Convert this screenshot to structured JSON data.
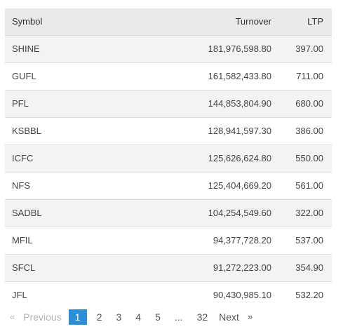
{
  "table": {
    "headers": {
      "symbol": "Symbol",
      "turnover": "Turnover",
      "ltp": "LTP"
    },
    "rows": [
      {
        "symbol": "SHINE",
        "turnover": "181,976,598.80",
        "ltp": "397.00"
      },
      {
        "symbol": "GUFL",
        "turnover": "161,582,433.80",
        "ltp": "711.00"
      },
      {
        "symbol": "PFL",
        "turnover": "144,853,804.90",
        "ltp": "680.00"
      },
      {
        "symbol": "KSBBL",
        "turnover": "128,941,597.30",
        "ltp": "386.00"
      },
      {
        "symbol": "ICFC",
        "turnover": "125,626,624.80",
        "ltp": "550.00"
      },
      {
        "symbol": "NFS",
        "turnover": "125,404,669.20",
        "ltp": "561.00"
      },
      {
        "symbol": "SADBL",
        "turnover": "104,254,549.60",
        "ltp": "322.00"
      },
      {
        "symbol": "MFIL",
        "turnover": "94,377,728.20",
        "ltp": "537.00"
      },
      {
        "symbol": "SFCL",
        "turnover": "91,272,223.00",
        "ltp": "354.90"
      },
      {
        "symbol": "JFL",
        "turnover": "90,430,985.10",
        "ltp": "532.20"
      }
    ]
  },
  "pagination": {
    "prev_arrow": "«",
    "previous": "Previous",
    "pages": [
      "1",
      "2",
      "3",
      "4",
      "5"
    ],
    "current_page": "1",
    "ellipsis": "...",
    "last_page": "32",
    "next": "Next",
    "next_arrow": "»"
  },
  "colors": {
    "accent": "#2a8fd6",
    "header_bg": "#e8eaec",
    "stripe": "#f3f3f3"
  }
}
